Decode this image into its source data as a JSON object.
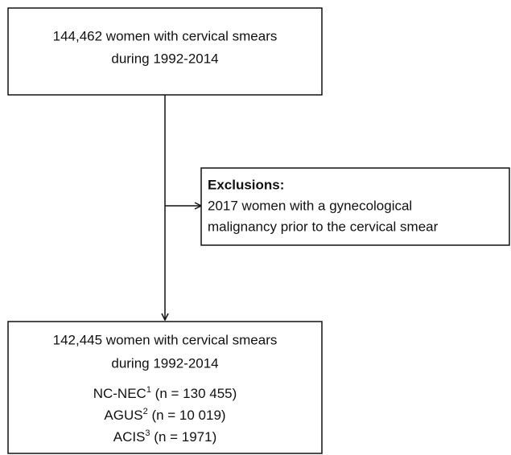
{
  "nodes": [
    {
      "lines": [
        "144,462 women with cervical smears",
        "during 1992-2014"
      ]
    },
    {
      "heading": "Exclusions:",
      "lines": [
        "2017 women with a gynecological",
        "malignancy prior to the cervical smear"
      ]
    },
    {
      "lines": [
        "142,445 women with cervical smears",
        "during 1992-2014"
      ],
      "groups": [
        {
          "name": "NC-NEC",
          "note": "1",
          "count": "(n = 130 455)"
        },
        {
          "name": "AGUS",
          "note": "2",
          "count": "(n = 10 019)"
        },
        {
          "name": "ACIS",
          "note": "3",
          "count": "(n = 1971)"
        }
      ]
    }
  ]
}
